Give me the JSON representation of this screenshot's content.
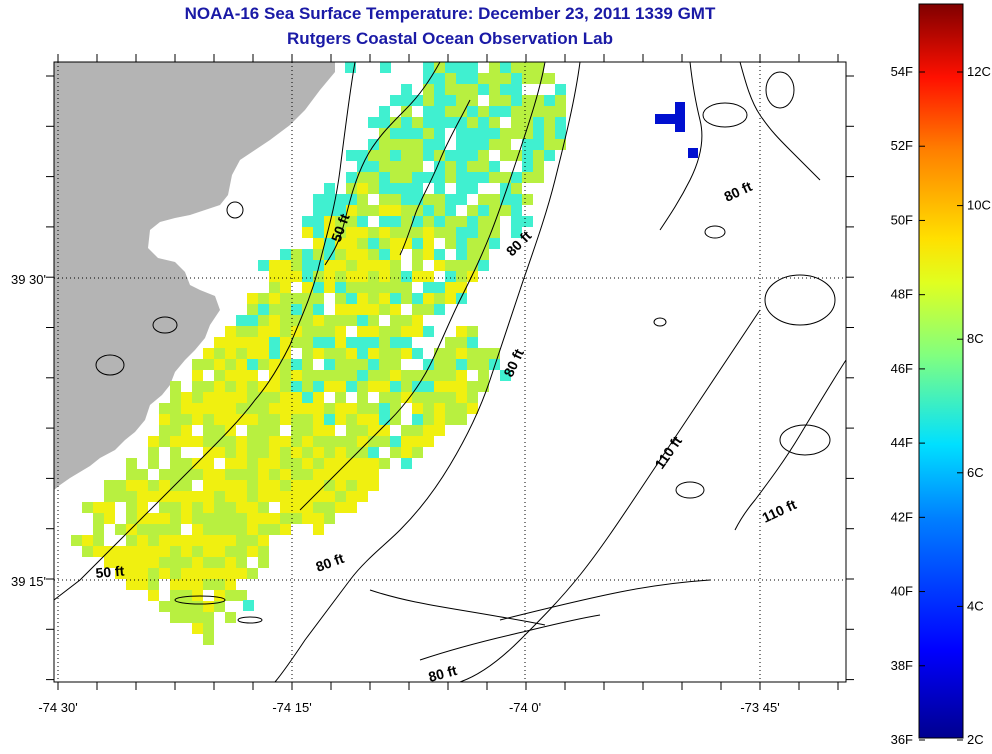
{
  "title": "NOAA-16 Sea Surface Temperature:  December 23, 2011 1339 GMT",
  "subtitle": "Rutgers Coastal Ocean Observation Lab",
  "axes": {
    "x_ticks": [
      "-74 30'",
      "-74 15'",
      "-74 0'",
      "-73 45'"
    ],
    "y_ticks": [
      "39 30'",
      "39 15'"
    ]
  },
  "contour_labels": [
    "50 ft",
    "80 ft",
    "80 ft",
    "80 ft",
    "80 ft",
    "80 ft",
    "110 ft",
    "110 ft",
    "50 ft"
  ],
  "colorbar": {
    "fahrenheit_labels": [
      "54F",
      "52F",
      "50F",
      "48F",
      "46F",
      "44F",
      "42F",
      "40F",
      "38F",
      "36F"
    ],
    "celsius_labels": [
      "12C",
      "10C",
      "8C",
      "6C",
      "4C",
      "2C"
    ],
    "colors": [
      "#00008f",
      "#0000ff",
      "#0080ff",
      "#00ffff",
      "#80ff80",
      "#ffff00",
      "#ff8000",
      "#ff0000",
      "#800000"
    ]
  },
  "colors": {
    "land": "#b4b4b4",
    "sst_warm": "#f0f010",
    "sst_mid": "#b8f040",
    "sst_cool": "#40f0d0",
    "cold_blob": "#0010d0"
  }
}
